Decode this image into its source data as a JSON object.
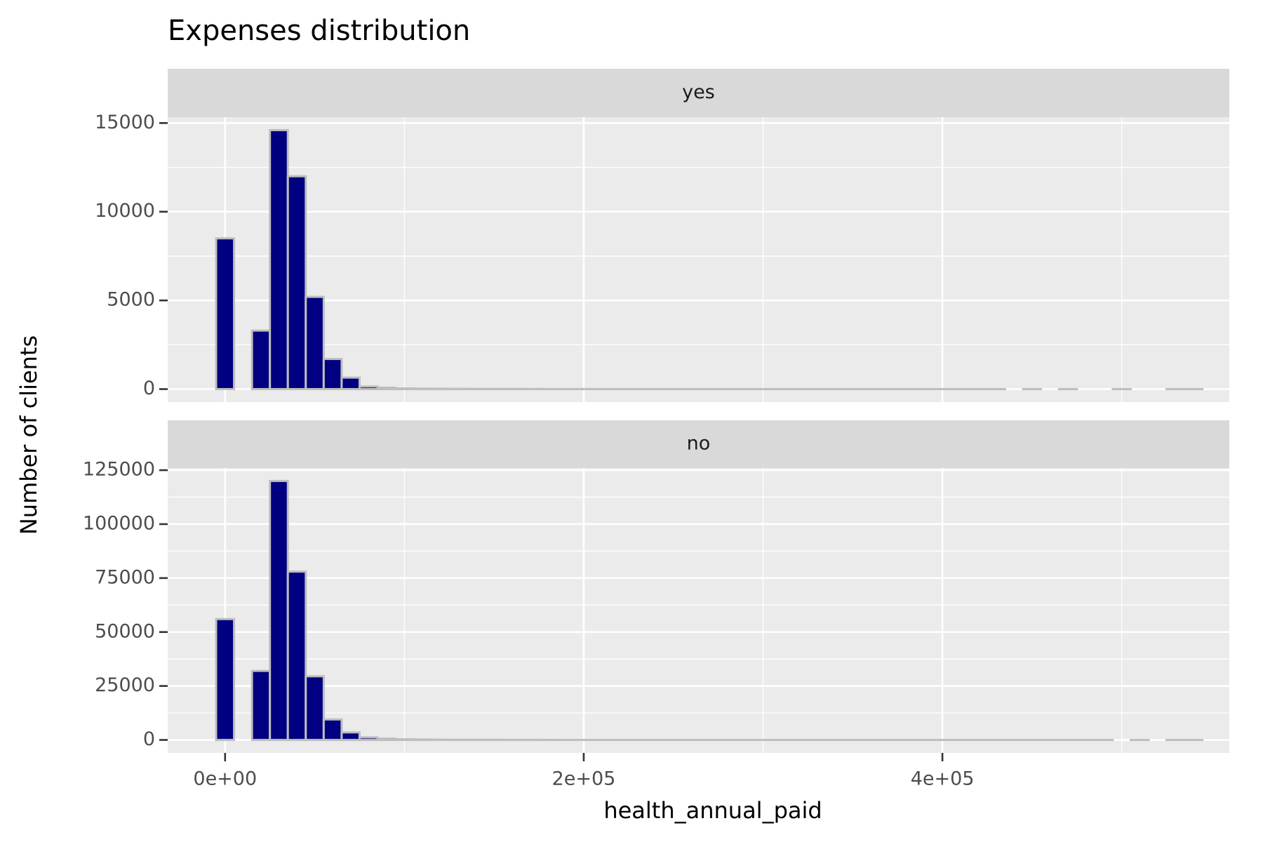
{
  "chart_data": {
    "type": "histogram",
    "title": "Expenses distribution",
    "x_label": "health_annual_paid",
    "y_label": "Number of clients",
    "color": "#000080",
    "edge_color": "#bebebe",
    "grid": true,
    "bins": [
      -5000,
      5000,
      15000,
      25000,
      35000,
      45000,
      55000,
      65000,
      75000,
      85000,
      95000,
      105000,
      115000,
      125000,
      135000,
      145000,
      155000,
      165000,
      175000,
      185000,
      195000,
      205000,
      215000,
      225000,
      235000,
      245000,
      255000,
      265000,
      275000,
      285000,
      295000,
      305000,
      315000,
      325000,
      335000,
      345000,
      355000,
      365000,
      375000,
      385000,
      395000,
      405000,
      415000,
      425000,
      435000,
      445000,
      455000,
      465000,
      475000,
      485000,
      495000,
      505000,
      515000,
      525000,
      535000,
      545000
    ],
    "xlim": [
      -32000,
      560000
    ],
    "xticks": [
      {
        "value": 0,
        "label": "0e+00"
      },
      {
        "value": 200000,
        "label": "2e+05"
      },
      {
        "value": 400000,
        "label": "4e+05"
      }
    ],
    "facets": [
      {
        "name": "yes",
        "ylim": [
          -730,
          15330
        ],
        "yticks": [
          0,
          5000,
          10000,
          15000
        ],
        "values": [
          8500,
          0,
          3300,
          14600,
          12000,
          5200,
          1700,
          650,
          150,
          80,
          40,
          30,
          22,
          18,
          14,
          11,
          9,
          8,
          7,
          6,
          5,
          5,
          4,
          4,
          3,
          3,
          3,
          2,
          2,
          2,
          2,
          2,
          1,
          1,
          1,
          1,
          1,
          1,
          1,
          1,
          1,
          1,
          1,
          1,
          0,
          1,
          0,
          1,
          0,
          0,
          1,
          0,
          0,
          1,
          1
        ]
      },
      {
        "name": "no",
        "ylim": [
          -6000,
          126000
        ],
        "yticks": [
          0,
          25000,
          50000,
          75000,
          100000,
          125000
        ],
        "values": [
          56000,
          0,
          32000,
          120000,
          78000,
          29500,
          9500,
          3500,
          1200,
          600,
          300,
          200,
          150,
          110,
          80,
          60,
          45,
          35,
          28,
          22,
          18,
          15,
          12,
          10,
          9,
          8,
          7,
          6,
          5,
          5,
          4,
          4,
          3,
          3,
          3,
          2,
          2,
          2,
          2,
          2,
          1,
          1,
          1,
          1,
          1,
          1,
          1,
          1,
          1,
          1,
          0,
          1,
          0,
          1,
          1
        ]
      }
    ]
  }
}
